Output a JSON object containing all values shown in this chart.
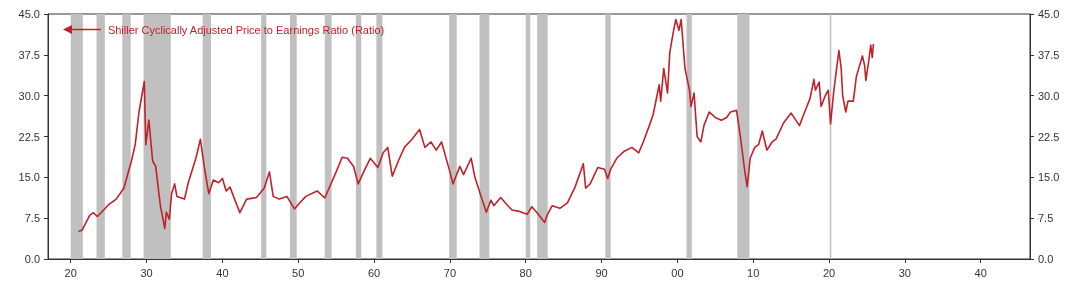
{
  "chart_data": {
    "type": "line",
    "x": [
      1921.0,
      1921.5,
      1922.5,
      1923.0,
      1923.5,
      1924.0,
      1925.0,
      1926.0,
      1927.0,
      1928.0,
      1928.5,
      1929.0,
      1929.7,
      1929.9,
      1930.3,
      1930.8,
      1931.2,
      1931.8,
      1932.4,
      1932.6,
      1933.0,
      1933.3,
      1933.7,
      1934.0,
      1935.0,
      1935.5,
      1936.5,
      1937.1,
      1937.6,
      1938.2,
      1938.8,
      1939.5,
      1940.0,
      1940.5,
      1941.0,
      1942.3,
      1943.2,
      1944.5,
      1945.5,
      1946.2,
      1946.7,
      1947.5,
      1948.5,
      1949.5,
      1950.0,
      1951.0,
      1952.5,
      1953.5,
      1955.0,
      1955.8,
      1956.5,
      1957.3,
      1957.9,
      1958.8,
      1959.5,
      1960.5,
      1961.2,
      1961.8,
      1962.4,
      1963.2,
      1964.0,
      1965.0,
      1966.0,
      1966.7,
      1967.5,
      1968.2,
      1968.9,
      1970.0,
      1970.4,
      1971.3,
      1971.8,
      1972.8,
      1973.3,
      1974.0,
      1974.8,
      1975.4,
      1975.8,
      1976.7,
      1977.5,
      1978.2,
      1979.0,
      1980.2,
      1980.8,
      1981.5,
      1982.5,
      1982.8,
      1983.5,
      1984.5,
      1985.5,
      1986.5,
      1987.6,
      1987.9,
      1988.5,
      1989.5,
      1990.4,
      1990.8,
      1991.2,
      1992.0,
      1993.0,
      1994.0,
      1994.9,
      1995.5,
      1996.3,
      1996.8,
      1997.6,
      1997.8,
      1998.2,
      1998.7,
      1999.0,
      1999.5,
      1999.8,
      2000.2,
      2000.5,
      2001.0,
      2001.6,
      2001.8,
      2002.2,
      2002.6,
      2003.1,
      2003.5,
      2004.2,
      2005.0,
      2005.8,
      2006.5,
      2007.0,
      2007.8,
      2008.3,
      2008.9,
      2009.2,
      2009.6,
      2010.2,
      2010.7,
      2011.2,
      2011.8,
      2012.5,
      2013.0,
      2014.0,
      2015.0,
      2016.1,
      2016.5,
      2017.5,
      2018.0,
      2018.2,
      2018.7,
      2018.95,
      2019.5,
      2019.9,
      2020.2,
      2020.6,
      2021.0,
      2021.3,
      2021.6,
      2021.8,
      2022.2,
      2022.5,
      2023.2,
      2023.6,
      2024.4,
      2024.7,
      2024.85,
      2025.2,
      2025.5,
      2025.7,
      2025.85
    ],
    "series": [
      {
        "name": "Shiller Cyclically Adjusted Price to Earnings Ratio (Ratio)",
        "color": "#c0222b",
        "values": [
          5.1,
          5.3,
          8.0,
          8.5,
          7.8,
          8.5,
          10,
          11,
          13,
          18,
          21,
          27,
          32.6,
          21,
          25.5,
          18,
          17,
          10,
          5.6,
          8.6,
          7.3,
          12,
          13.8,
          11.5,
          11,
          14,
          18.5,
          22,
          17,
          12,
          14.5,
          14,
          14.8,
          12.5,
          13.2,
          8.5,
          11,
          11.3,
          13,
          16,
          11.5,
          11,
          11.5,
          9.2,
          10,
          11.5,
          12.5,
          11.2,
          16,
          18.7,
          18.5,
          17,
          13.8,
          16.5,
          18.5,
          16.8,
          19.5,
          20.5,
          15.2,
          18,
          20.5,
          22,
          23.8,
          20.5,
          21.5,
          20,
          21.5,
          16,
          13.8,
          17,
          15.5,
          18.5,
          15,
          12,
          8.6,
          10.8,
          9.8,
          11.3,
          10,
          9,
          8.8,
          8.2,
          9.6,
          8.5,
          6.7,
          8,
          9.8,
          9.3,
          10.3,
          13.2,
          17.5,
          13,
          13.8,
          16.8,
          16.5,
          14.8,
          16.5,
          18.5,
          19.8,
          20.5,
          19.5,
          21.5,
          24.5,
          26.5,
          32,
          29,
          35,
          30.5,
          38,
          42,
          44,
          42,
          44,
          35,
          31,
          28,
          30.5,
          22.5,
          21.5,
          24.5,
          27,
          26,
          25.5,
          26,
          27,
          27.3,
          22.5,
          16,
          13.3,
          18.5,
          20.5,
          21,
          23.5,
          20,
          21.5,
          22,
          25,
          26.8,
          24.5,
          26,
          29.5,
          33,
          31,
          32.5,
          28,
          30,
          31,
          24.8,
          30.5,
          35,
          38.3,
          35,
          30,
          27,
          29,
          29,
          33.5,
          37.3,
          35.5,
          32.8,
          36,
          39.3,
          37,
          39.5
        ]
      }
    ],
    "xlim": [
      1917,
      2046.5
    ],
    "xticks": [
      {
        "value": 1920,
        "label": "20"
      },
      {
        "value": 1930,
        "label": "30"
      },
      {
        "value": 1940,
        "label": "40"
      },
      {
        "value": 1950,
        "label": "50"
      },
      {
        "value": 1960,
        "label": "60"
      },
      {
        "value": 1970,
        "label": "70"
      },
      {
        "value": 1980,
        "label": "80"
      },
      {
        "value": 1990,
        "label": "90"
      },
      {
        "value": 2000,
        "label": "00"
      },
      {
        "value": 2010,
        "label": "10"
      },
      {
        "value": 2020,
        "label": "20"
      },
      {
        "value": 2030,
        "label": "30"
      },
      {
        "value": 2040,
        "label": "40"
      }
    ],
    "ylim": [
      0,
      45
    ],
    "yticks": [
      {
        "value": 0,
        "label": "0.0"
      },
      7.5,
      {
        "value": 15,
        "label": "15.0"
      },
      22.5,
      {
        "value": 30,
        "label": "30.0"
      },
      37.5,
      {
        "value": 45,
        "label": "45.0"
      }
    ],
    "y2lim": [
      0,
      45
    ],
    "y2ticks": [
      {
        "value": 0,
        "label": "0.0"
      },
      7.5,
      {
        "value": 15,
        "label": "15.0"
      },
      22.5,
      {
        "value": 30,
        "label": "30.0"
      },
      37.5,
      {
        "value": 45,
        "label": "45.0"
      }
    ],
    "bands": [
      {
        "axis": "x",
        "from": 1920.0,
        "to": 1921.6,
        "color": "#c0c0c0"
      },
      {
        "axis": "x",
        "from": 1923.4,
        "to": 1924.5,
        "color": "#c0c0c0"
      },
      {
        "axis": "x",
        "from": 1926.8,
        "to": 1927.9,
        "color": "#c0c0c0"
      },
      {
        "axis": "x",
        "from": 1929.6,
        "to": 1933.2,
        "color": "#c0c0c0"
      },
      {
        "axis": "x",
        "from": 1937.4,
        "to": 1938.5,
        "color": "#c0c0c0"
      },
      {
        "axis": "x",
        "from": 1945.1,
        "to": 1945.8,
        "color": "#c0c0c0"
      },
      {
        "axis": "x",
        "from": 1948.9,
        "to": 1949.8,
        "color": "#c0c0c0"
      },
      {
        "axis": "x",
        "from": 1953.5,
        "to": 1954.4,
        "color": "#c0c0c0"
      },
      {
        "axis": "x",
        "from": 1957.6,
        "to": 1958.3,
        "color": "#c0c0c0"
      },
      {
        "axis": "x",
        "from": 1960.3,
        "to": 1961.1,
        "color": "#c0c0c0"
      },
      {
        "axis": "x",
        "from": 1969.9,
        "to": 1970.9,
        "color": "#c0c0c0"
      },
      {
        "axis": "x",
        "from": 1973.9,
        "to": 1975.2,
        "color": "#c0c0c0"
      },
      {
        "axis": "x",
        "from": 1980.0,
        "to": 1980.6,
        "color": "#c0c0c0"
      },
      {
        "axis": "x",
        "from": 1981.5,
        "to": 1982.9,
        "color": "#c0c0c0"
      },
      {
        "axis": "x",
        "from": 1990.5,
        "to": 1991.2,
        "color": "#c0c0c0"
      },
      {
        "axis": "x",
        "from": 2001.2,
        "to": 2001.9,
        "color": "#c0c0c0"
      },
      {
        "axis": "x",
        "from": 2007.9,
        "to": 2009.5,
        "color": "#c0c0c0"
      },
      {
        "axis": "x",
        "from": 2020.1,
        "to": 2020.3,
        "color": "#c0c0c0"
      }
    ],
    "legend": "top left"
  }
}
